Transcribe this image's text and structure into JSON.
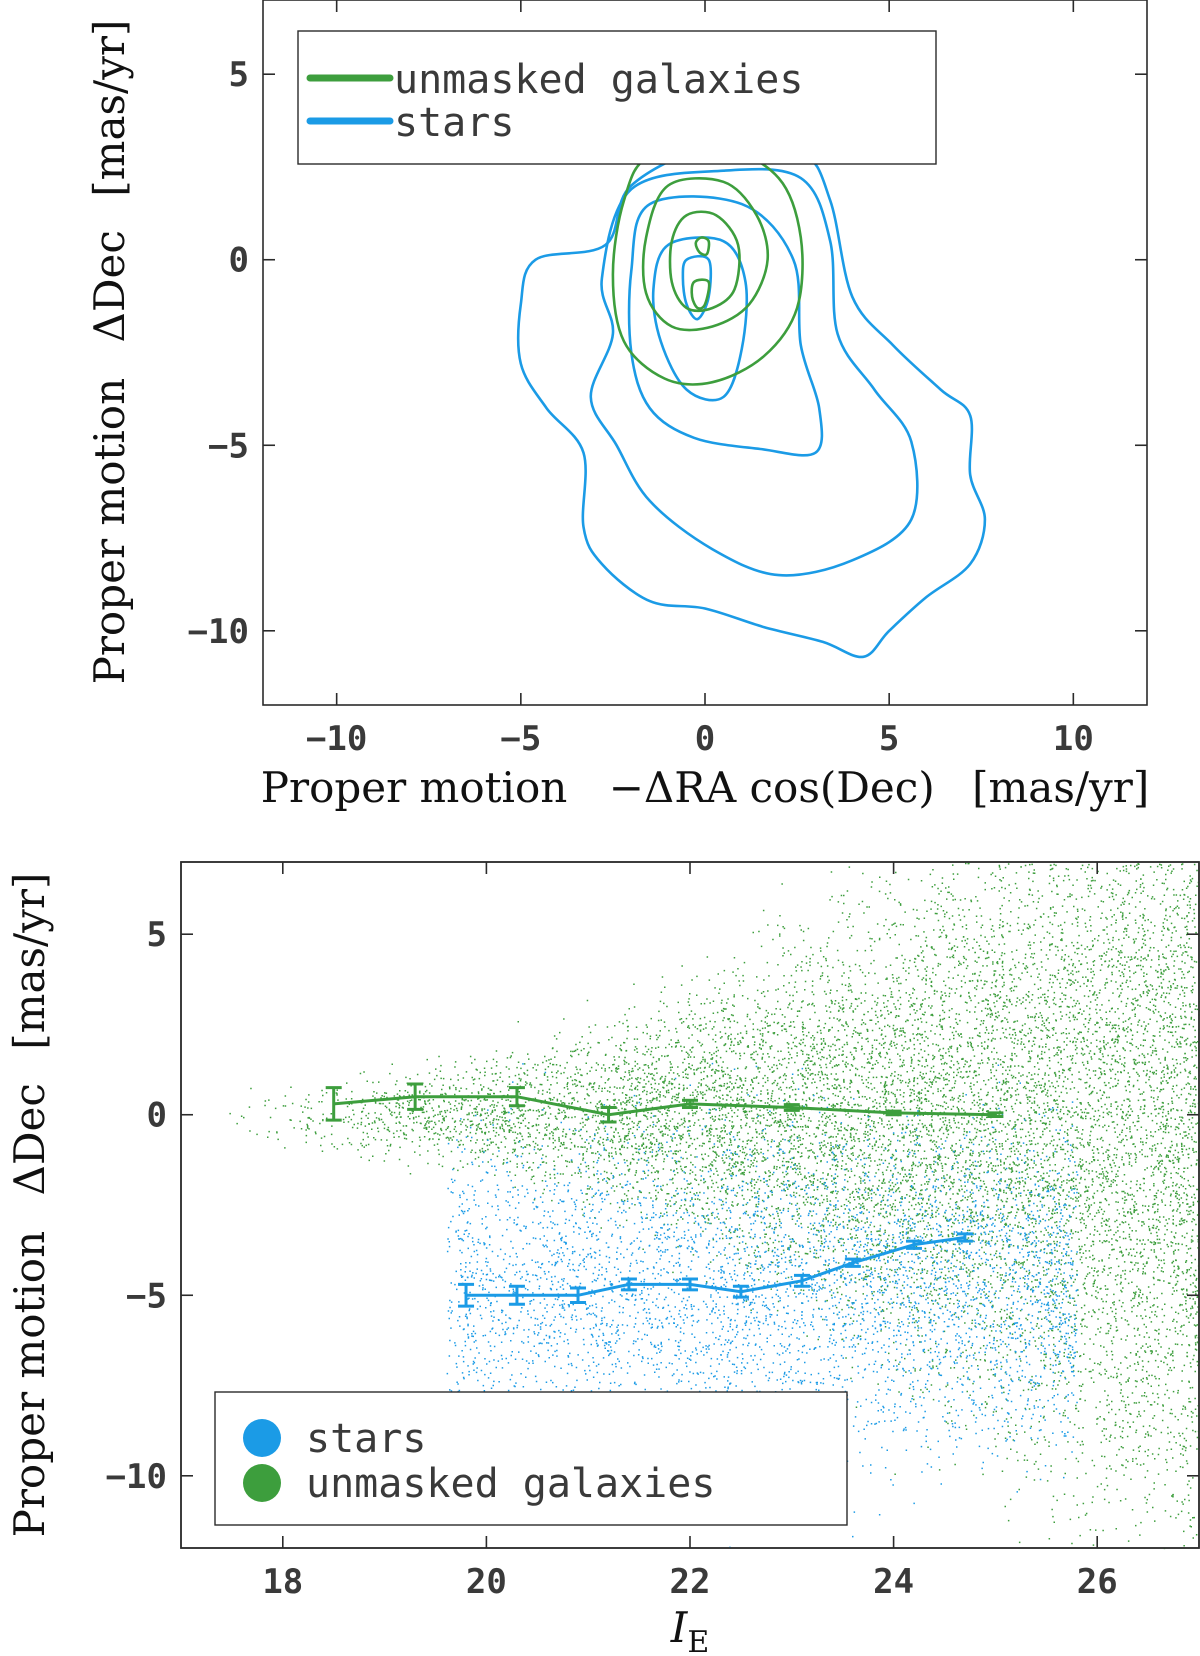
{
  "colors": {
    "galaxies": "#3d9e3d",
    "stars": "#1b9be6",
    "axis": "#2b2b2b",
    "text": "#3a3a3a"
  },
  "chart_data": [
    {
      "type": "contour",
      "xlabel_prefix": "Proper motion",
      "xlabel_math": "−ΔRA cos(Dec)",
      "xlabel_unit": "[mas/yr]",
      "ylabel_prefix": "Proper motion",
      "ylabel_math": "ΔDec",
      "ylabel_unit": "[mas/yr]",
      "xlim": [
        -12,
        12
      ],
      "ylim": [
        -12,
        7
      ],
      "xticks": [
        -10,
        -5,
        0,
        5,
        10
      ],
      "yticks": [
        -10,
        -5,
        0,
        5
      ],
      "xtick_labels": [
        "−10",
        "−5",
        "0",
        "5",
        "10"
      ],
      "ytick_labels": [
        "−10",
        "−5",
        "0",
        "5"
      ],
      "legend_position": "top-left",
      "series": [
        {
          "name": "unmasked galaxies",
          "color_key": "galaxies",
          "contours": [
            [
              [
                -0.1,
                0.6
              ],
              [
                0.1,
                0.5
              ],
              [
                0.05,
                0.15
              ],
              [
                -0.15,
                0.2
              ],
              [
                -0.25,
                0.45
              ]
            ],
            [
              [
                -0.3,
                -0.6
              ],
              [
                0.1,
                -0.6
              ],
              [
                0.0,
                -1.2
              ],
              [
                -0.2,
                -1.3
              ],
              [
                -0.35,
                -1.0
              ]
            ],
            [
              [
                -0.5,
                1.2
              ],
              [
                0.3,
                1.2
              ],
              [
                0.9,
                0.4
              ],
              [
                0.8,
                -0.8
              ],
              [
                0.2,
                -1.3
              ],
              [
                -0.5,
                -1.3
              ],
              [
                -0.9,
                -0.6
              ],
              [
                -0.9,
                0.5
              ]
            ],
            [
              [
                -1.0,
                2.0
              ],
              [
                0.5,
                2.1
              ],
              [
                1.4,
                1.2
              ],
              [
                1.7,
                0.0
              ],
              [
                1.2,
                -1.2
              ],
              [
                0.2,
                -1.8
              ],
              [
                -0.9,
                -1.8
              ],
              [
                -1.6,
                -0.9
              ],
              [
                -1.6,
                0.6
              ]
            ],
            [
              [
                -1.5,
                2.8
              ],
              [
                0.5,
                3.0
              ],
              [
                2.0,
                2.2
              ],
              [
                2.6,
                0.6
              ],
              [
                2.5,
                -1.3
              ],
              [
                1.6,
                -2.6
              ],
              [
                0.2,
                -3.3
              ],
              [
                -1.1,
                -3.2
              ],
              [
                -2.2,
                -2.2
              ],
              [
                -2.5,
                -0.4
              ],
              [
                -2.2,
                1.6
              ]
            ]
          ]
        },
        {
          "name": "stars",
          "color_key": "stars",
          "contours": [
            [
              [
                -0.5,
                0.0
              ],
              [
                0.1,
                0.0
              ],
              [
                0.1,
                -1.0
              ],
              [
                -0.2,
                -1.6
              ],
              [
                -0.5,
                -1.2
              ],
              [
                -0.6,
                -0.5
              ]
            ],
            [
              [
                -1.0,
                0.4
              ],
              [
                0.5,
                0.5
              ],
              [
                1.1,
                -0.6
              ],
              [
                1.0,
                -2.4
              ],
              [
                0.5,
                -3.7
              ],
              [
                -0.5,
                -3.5
              ],
              [
                -1.2,
                -2.2
              ],
              [
                -1.4,
                -0.8
              ]
            ],
            [
              [
                -1.5,
                1.5
              ],
              [
                1.0,
                1.5
              ],
              [
                2.4,
                0.0
              ],
              [
                2.6,
                -2.3
              ],
              [
                3.1,
                -4.0
              ],
              [
                3.0,
                -5.2
              ],
              [
                1.5,
                -5.1
              ],
              [
                -0.3,
                -4.8
              ],
              [
                -1.5,
                -4.0
              ],
              [
                -2.0,
                -2.5
              ],
              [
                -2.0,
                -0.3
              ]
            ],
            [
              [
                -2.0,
                1.9
              ],
              [
                0.5,
                2.4
              ],
              [
                2.6,
                2.2
              ],
              [
                3.4,
                0.5
              ],
              [
                3.6,
                -2.0
              ],
              [
                4.6,
                -3.5
              ],
              [
                5.6,
                -4.9
              ],
              [
                5.6,
                -7.0
              ],
              [
                4.0,
                -8.1
              ],
              [
                2.0,
                -8.5
              ],
              [
                0.2,
                -7.8
              ],
              [
                -1.5,
                -6.5
              ],
              [
                -2.4,
                -5.0
              ],
              [
                -3.1,
                -3.7
              ],
              [
                -2.5,
                -2.0
              ],
              [
                -2.8,
                -0.5
              ]
            ],
            [
              [
                -4.6,
                0.0
              ],
              [
                -2.7,
                0.4
              ],
              [
                -2.0,
                2.0
              ],
              [
                0.3,
                3.1
              ],
              [
                2.6,
                2.9
              ],
              [
                3.4,
                1.6
              ],
              [
                4.0,
                -1.0
              ],
              [
                5.1,
                -2.3
              ],
              [
                6.4,
                -3.5
              ],
              [
                7.2,
                -4.2
              ],
              [
                7.2,
                -5.8
              ],
              [
                7.6,
                -7.0
              ],
              [
                7.2,
                -8.2
              ],
              [
                6.0,
                -9.1
              ],
              [
                5.0,
                -10.0
              ],
              [
                4.3,
                -10.7
              ],
              [
                3.2,
                -10.3
              ],
              [
                1.6,
                -9.9
              ],
              [
                0.0,
                -9.4
              ],
              [
                -1.5,
                -9.2
              ],
              [
                -2.8,
                -8.2
              ],
              [
                -3.3,
                -7.2
              ],
              [
                -3.3,
                -5.2
              ],
              [
                -4.3,
                -4.0
              ],
              [
                -5.0,
                -2.8
              ],
              [
                -5.0,
                -1.2
              ]
            ]
          ]
        }
      ]
    },
    {
      "type": "scatter",
      "xlabel": "I",
      "xlabel_sub": "E",
      "ylabel_prefix": "Proper motion",
      "ylabel_math": "ΔDec",
      "ylabel_unit": "[mas/yr]",
      "xlim": [
        17,
        27
      ],
      "ylim": [
        -12,
        7
      ],
      "xticks": [
        18,
        20,
        22,
        24,
        26
      ],
      "yticks": [
        -10,
        -5,
        0,
        5
      ],
      "xtick_labels": [
        "18",
        "20",
        "22",
        "24",
        "26"
      ],
      "ytick_labels": [
        "−10",
        "−5",
        "0",
        "5"
      ],
      "legend_position": "bottom-left",
      "series": [
        {
          "name": "stars",
          "color_key": "stars",
          "binned_x": [
            19.8,
            20.3,
            20.9,
            21.4,
            22.0,
            22.5,
            23.1,
            23.6,
            24.2,
            24.7
          ],
          "binned_y": [
            -5.0,
            -5.0,
            -5.0,
            -4.7,
            -4.7,
            -4.9,
            -4.6,
            -4.1,
            -3.6,
            -3.4
          ],
          "binned_err": [
            0.3,
            0.25,
            0.2,
            0.15,
            0.15,
            0.15,
            0.15,
            0.1,
            0.1,
            0.1
          ]
        },
        {
          "name": "unmasked galaxies",
          "color_key": "galaxies",
          "binned_x": [
            18.5,
            19.3,
            20.3,
            21.2,
            22.0,
            23.0,
            24.0,
            25.0
          ],
          "binned_y": [
            0.3,
            0.5,
            0.5,
            0.0,
            0.3,
            0.2,
            0.05,
            0.0
          ],
          "binned_err": [
            0.45,
            0.35,
            0.25,
            0.2,
            0.1,
            0.08,
            0.05,
            0.05
          ]
        }
      ]
    }
  ]
}
